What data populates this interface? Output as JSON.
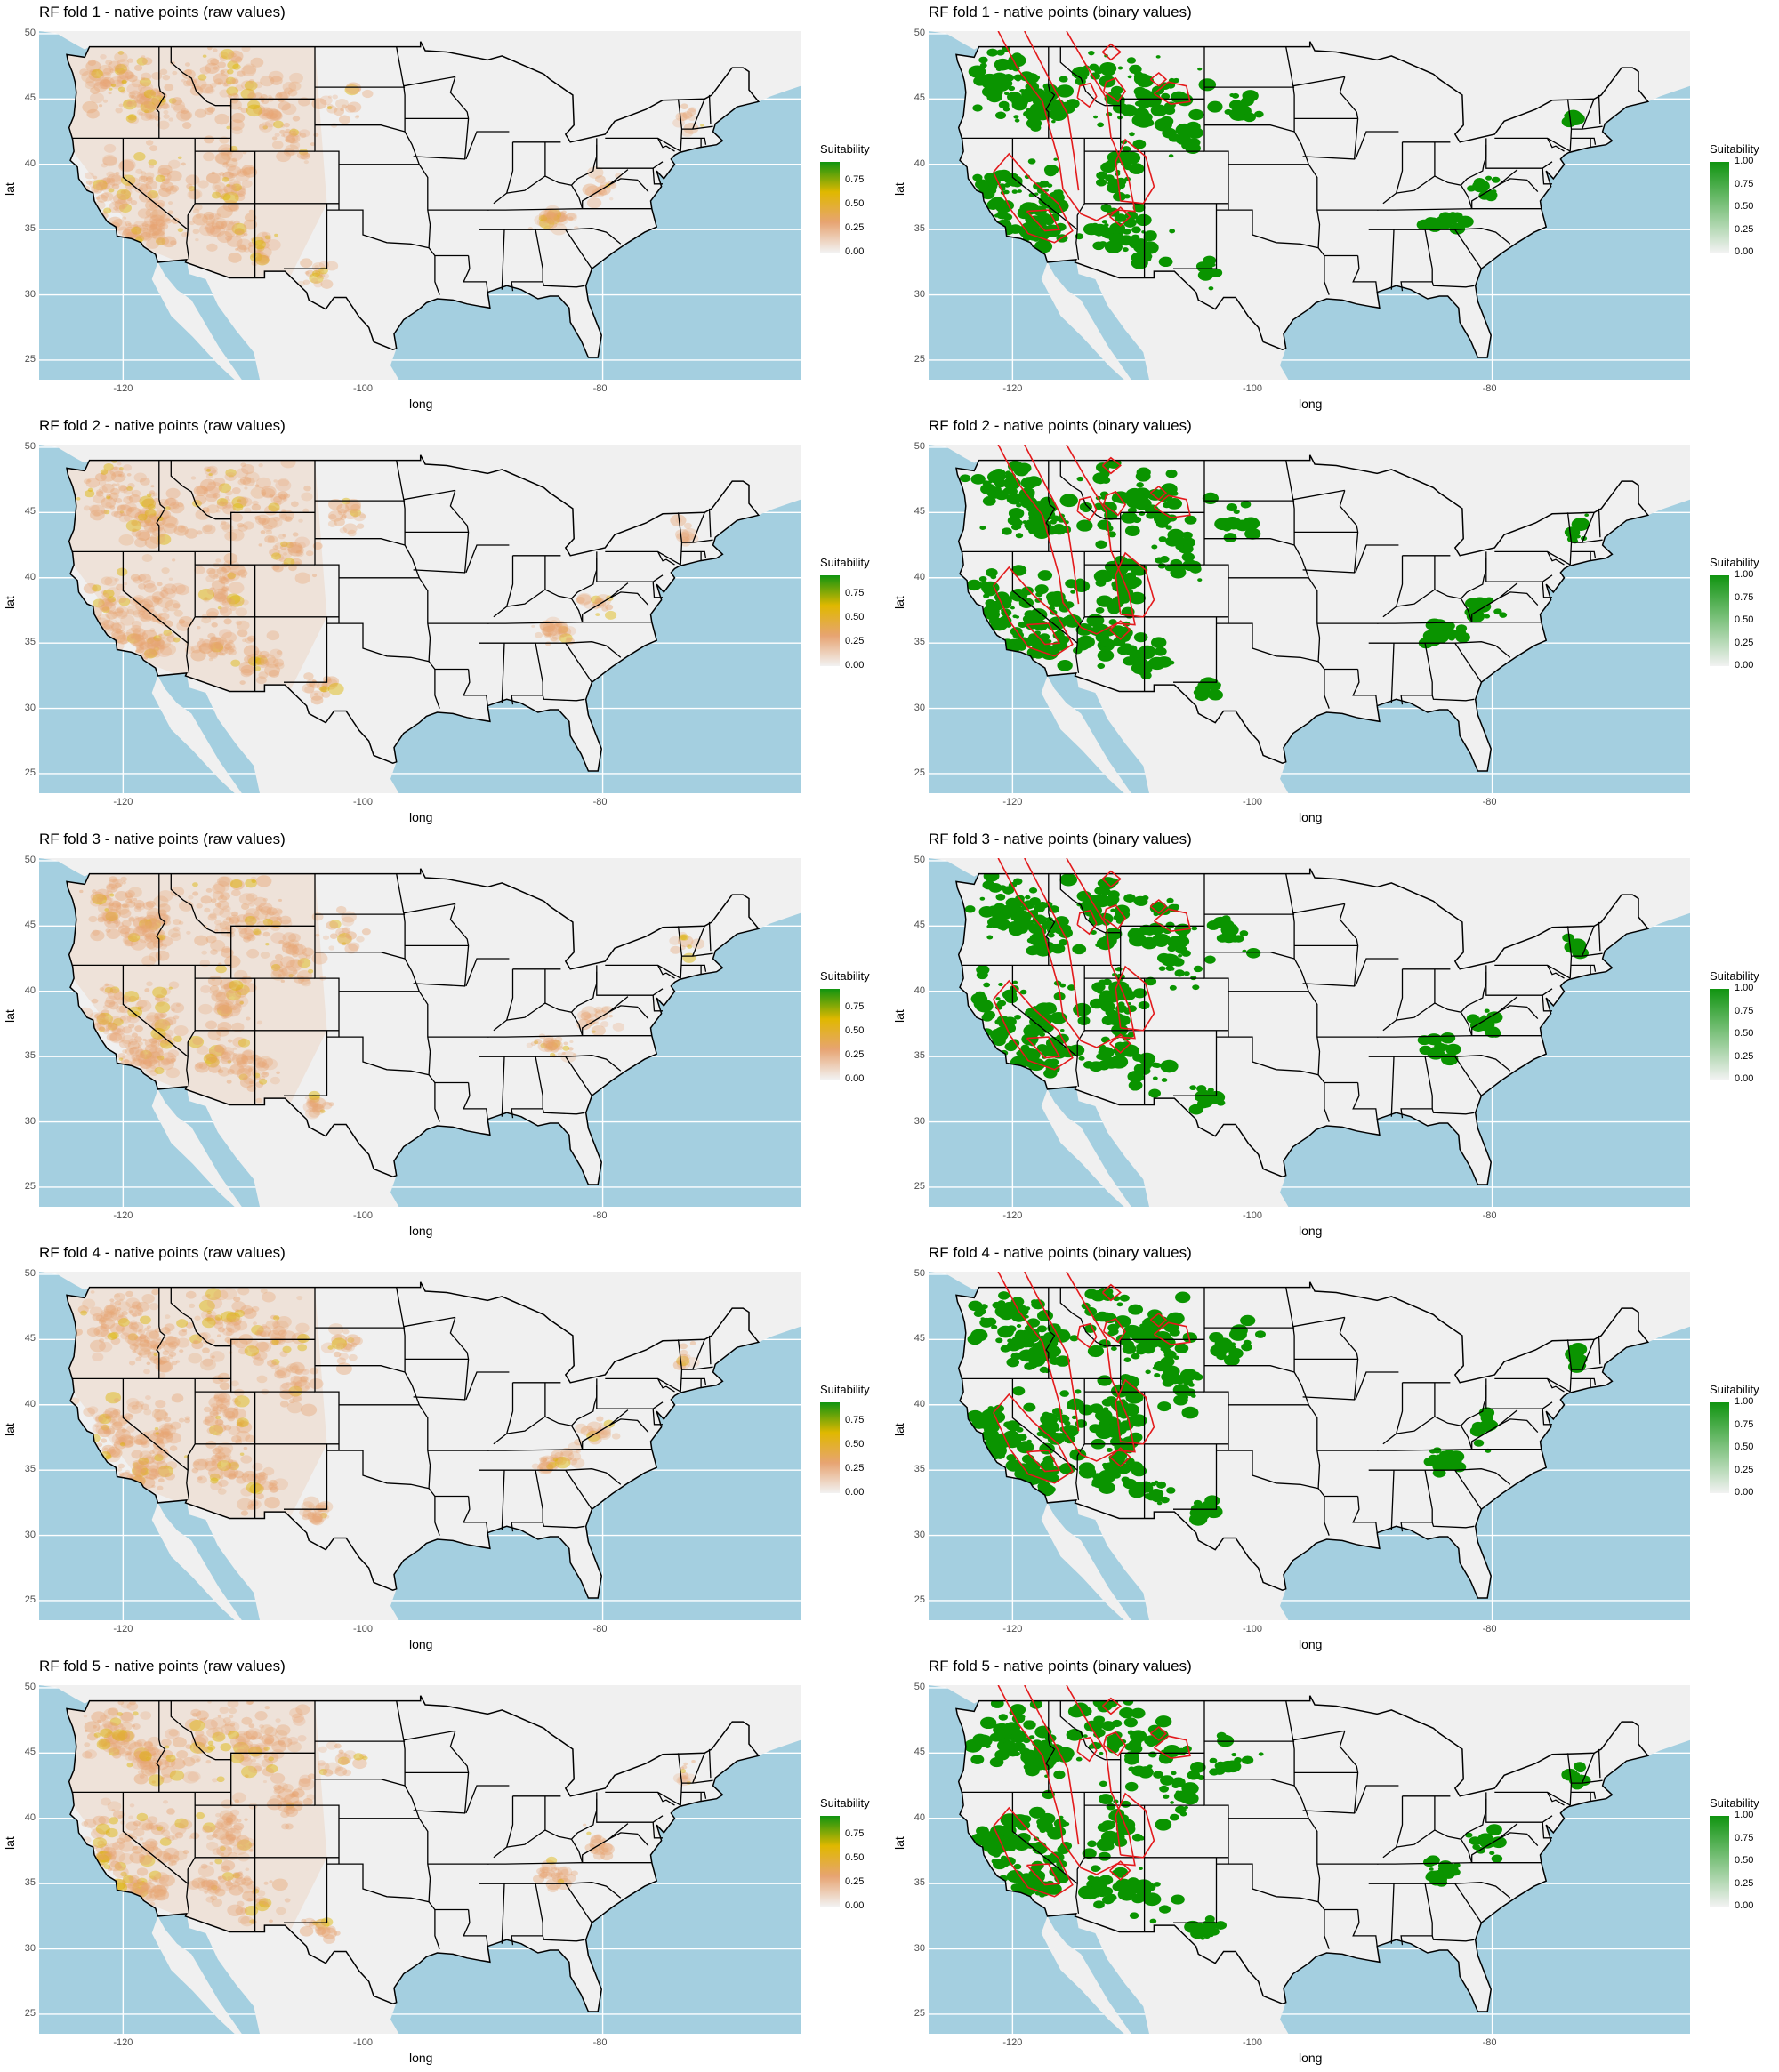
{
  "panels": [
    {
      "title": "RF fold 1 - native points (raw values)",
      "mode": "raw"
    },
    {
      "title": "RF fold 1 - native points (binary values)",
      "mode": "binary"
    },
    {
      "title": "RF fold 2 - native points (raw values)",
      "mode": "raw"
    },
    {
      "title": "RF fold 2 - native points (binary values)",
      "mode": "binary"
    },
    {
      "title": "RF fold 3 - native points (raw values)",
      "mode": "raw"
    },
    {
      "title": "RF fold 3 - native points (binary values)",
      "mode": "binary"
    },
    {
      "title": "RF fold 4 - native points (raw values)",
      "mode": "raw"
    },
    {
      "title": "RF fold 4 - native points (binary values)",
      "mode": "binary"
    },
    {
      "title": "RF fold 5 - native points (raw values)",
      "mode": "raw"
    },
    {
      "title": "RF fold 5 - native points (binary values)",
      "mode": "binary"
    }
  ],
  "axes": {
    "xlabel": "long",
    "ylabel": "lat",
    "xticks": [
      -120,
      -100,
      -80
    ],
    "xtick_labels": [
      "-120",
      "-100",
      "-80"
    ],
    "yticks": [
      25,
      30,
      35,
      40,
      45,
      50
    ],
    "ytick_labels": [
      "25",
      "30",
      "35",
      "40",
      "45",
      "50"
    ],
    "xlim": [
      -127,
      -63.5
    ],
    "ylim": [
      23.5,
      50.2
    ]
  },
  "legends": {
    "raw": {
      "title": "Suitability",
      "labels": [
        "0.75",
        "0.50",
        "0.25",
        "0.00"
      ],
      "values": [
        0.75,
        0.5,
        0.25,
        0.0
      ],
      "max": 0.95,
      "colors": [
        "#f2f2f2",
        "#e7a472",
        "#e0b800",
        "#109410"
      ]
    },
    "binary": {
      "title": "Suitability",
      "labels": [
        "1.00",
        "0.75",
        "0.50",
        "0.25",
        "0.00"
      ],
      "values": [
        1.0,
        0.75,
        0.5,
        0.25,
        0.0
      ],
      "max": 1.0,
      "colors": [
        "#f2f2f2",
        "#109410"
      ]
    }
  },
  "colors": {
    "ocean": "#a4cfe0",
    "land": "#f0f0f0",
    "raw_fill": "#e7a472",
    "raw_high": "#dcb400",
    "binary_fill": "#0a9400",
    "contour": "#e31a1c",
    "border": "#000000"
  }
}
